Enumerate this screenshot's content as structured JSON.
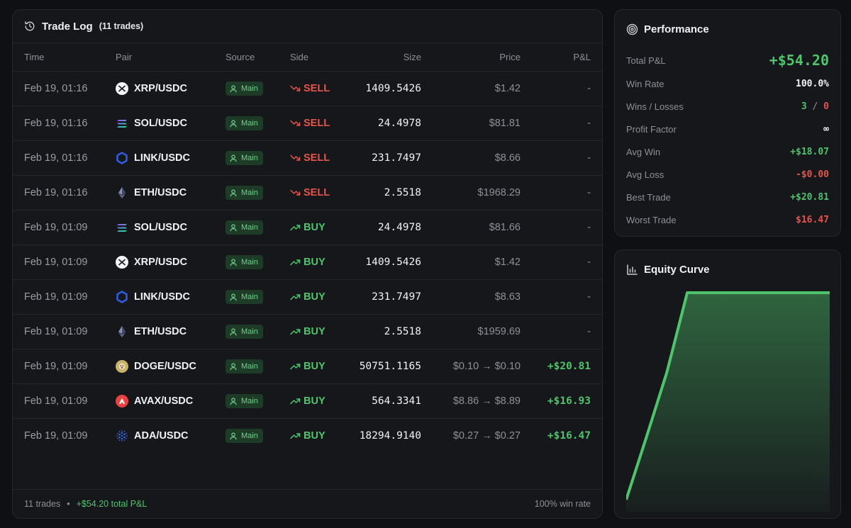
{
  "trade_log": {
    "title": "Trade Log",
    "count_label": "(11 trades)",
    "columns": {
      "time": "Time",
      "pair": "Pair",
      "source": "Source",
      "side": "Side",
      "size": "Size",
      "price": "Price",
      "pnl": "P&L"
    },
    "rows": [
      {
        "time": "Feb 19, 01:16",
        "pair": "XRP/USDC",
        "coin": "xrp",
        "source": "Main",
        "side": "SELL",
        "size": "1409.5426",
        "price": "$1.42",
        "pnl": "-"
      },
      {
        "time": "Feb 19, 01:16",
        "pair": "SOL/USDC",
        "coin": "sol",
        "source": "Main",
        "side": "SELL",
        "size": "24.4978",
        "price": "$81.81",
        "pnl": "-"
      },
      {
        "time": "Feb 19, 01:16",
        "pair": "LINK/USDC",
        "coin": "link",
        "source": "Main",
        "side": "SELL",
        "size": "231.7497",
        "price": "$8.66",
        "pnl": "-"
      },
      {
        "time": "Feb 19, 01:16",
        "pair": "ETH/USDC",
        "coin": "eth",
        "source": "Main",
        "side": "SELL",
        "size": "2.5518",
        "price": "$1968.29",
        "pnl": "-"
      },
      {
        "time": "Feb 19, 01:09",
        "pair": "SOL/USDC",
        "coin": "sol",
        "source": "Main",
        "side": "BUY",
        "size": "24.4978",
        "price": "$81.66",
        "pnl": "-"
      },
      {
        "time": "Feb 19, 01:09",
        "pair": "XRP/USDC",
        "coin": "xrp",
        "source": "Main",
        "side": "BUY",
        "size": "1409.5426",
        "price": "$1.42",
        "pnl": "-"
      },
      {
        "time": "Feb 19, 01:09",
        "pair": "LINK/USDC",
        "coin": "link",
        "source": "Main",
        "side": "BUY",
        "size": "231.7497",
        "price": "$8.63",
        "pnl": "-"
      },
      {
        "time": "Feb 19, 01:09",
        "pair": "ETH/USDC",
        "coin": "eth",
        "source": "Main",
        "side": "BUY",
        "size": "2.5518",
        "price": "$1959.69",
        "pnl": "-"
      },
      {
        "time": "Feb 19, 01:09",
        "pair": "DOGE/USDC",
        "coin": "doge",
        "source": "Main",
        "side": "BUY",
        "size": "50751.1165",
        "price": "$0.10 → $0.10",
        "pnl": "+$20.81"
      },
      {
        "time": "Feb 19, 01:09",
        "pair": "AVAX/USDC",
        "coin": "avax",
        "source": "Main",
        "side": "BUY",
        "size": "564.3341",
        "price": "$8.86 → $8.89",
        "pnl": "+$16.93"
      },
      {
        "time": "Feb 19, 01:09",
        "pair": "ADA/USDC",
        "coin": "ada",
        "source": "Main",
        "side": "BUY",
        "size": "18294.9140",
        "price": "$0.27 → $0.27",
        "pnl": "+$16.47"
      }
    ],
    "footer": {
      "trades": "11 trades",
      "dot": "•",
      "total_pnl": "+$54.20 total P&L",
      "win_rate": "100% win rate"
    }
  },
  "performance": {
    "title": "Performance",
    "total_pnl": {
      "label": "Total P&L",
      "value": "+$54.20"
    },
    "win_rate": {
      "label": "Win Rate",
      "value": "100.0%"
    },
    "wins_losses": {
      "label": "Wins / Losses",
      "wins": "3",
      "sep": "/",
      "losses": "0"
    },
    "profit_factor": {
      "label": "Profit Factor",
      "value": "∞"
    },
    "avg_win": {
      "label": "Avg Win",
      "value": "+$18.07"
    },
    "avg_loss": {
      "label": "Avg Loss",
      "value": "-$0.00"
    },
    "best_trade": {
      "label": "Best Trade",
      "value": "+$20.81"
    },
    "worst_trade": {
      "label": "Worst Trade",
      "value": "$16.47"
    }
  },
  "equity_curve": {
    "title": "Equity Curve",
    "line_color": "#4fc46c",
    "points": [
      0,
      16.47,
      33.4,
      54.2,
      54.2,
      54.2,
      54.2,
      54.2,
      54.2,
      54.2,
      54.2
    ]
  },
  "icons": {
    "history": "history-icon",
    "target": "target-icon",
    "bar_chart": "bar-chart-icon",
    "user": "user-icon",
    "trend_up": "trend-up-icon",
    "trend_down": "trend-down-icon"
  },
  "colors": {
    "background": "#0f1013",
    "card": "#16171b",
    "green": "#4fc46c",
    "red": "#e5544b",
    "badge_bg": "#1d3b27"
  }
}
